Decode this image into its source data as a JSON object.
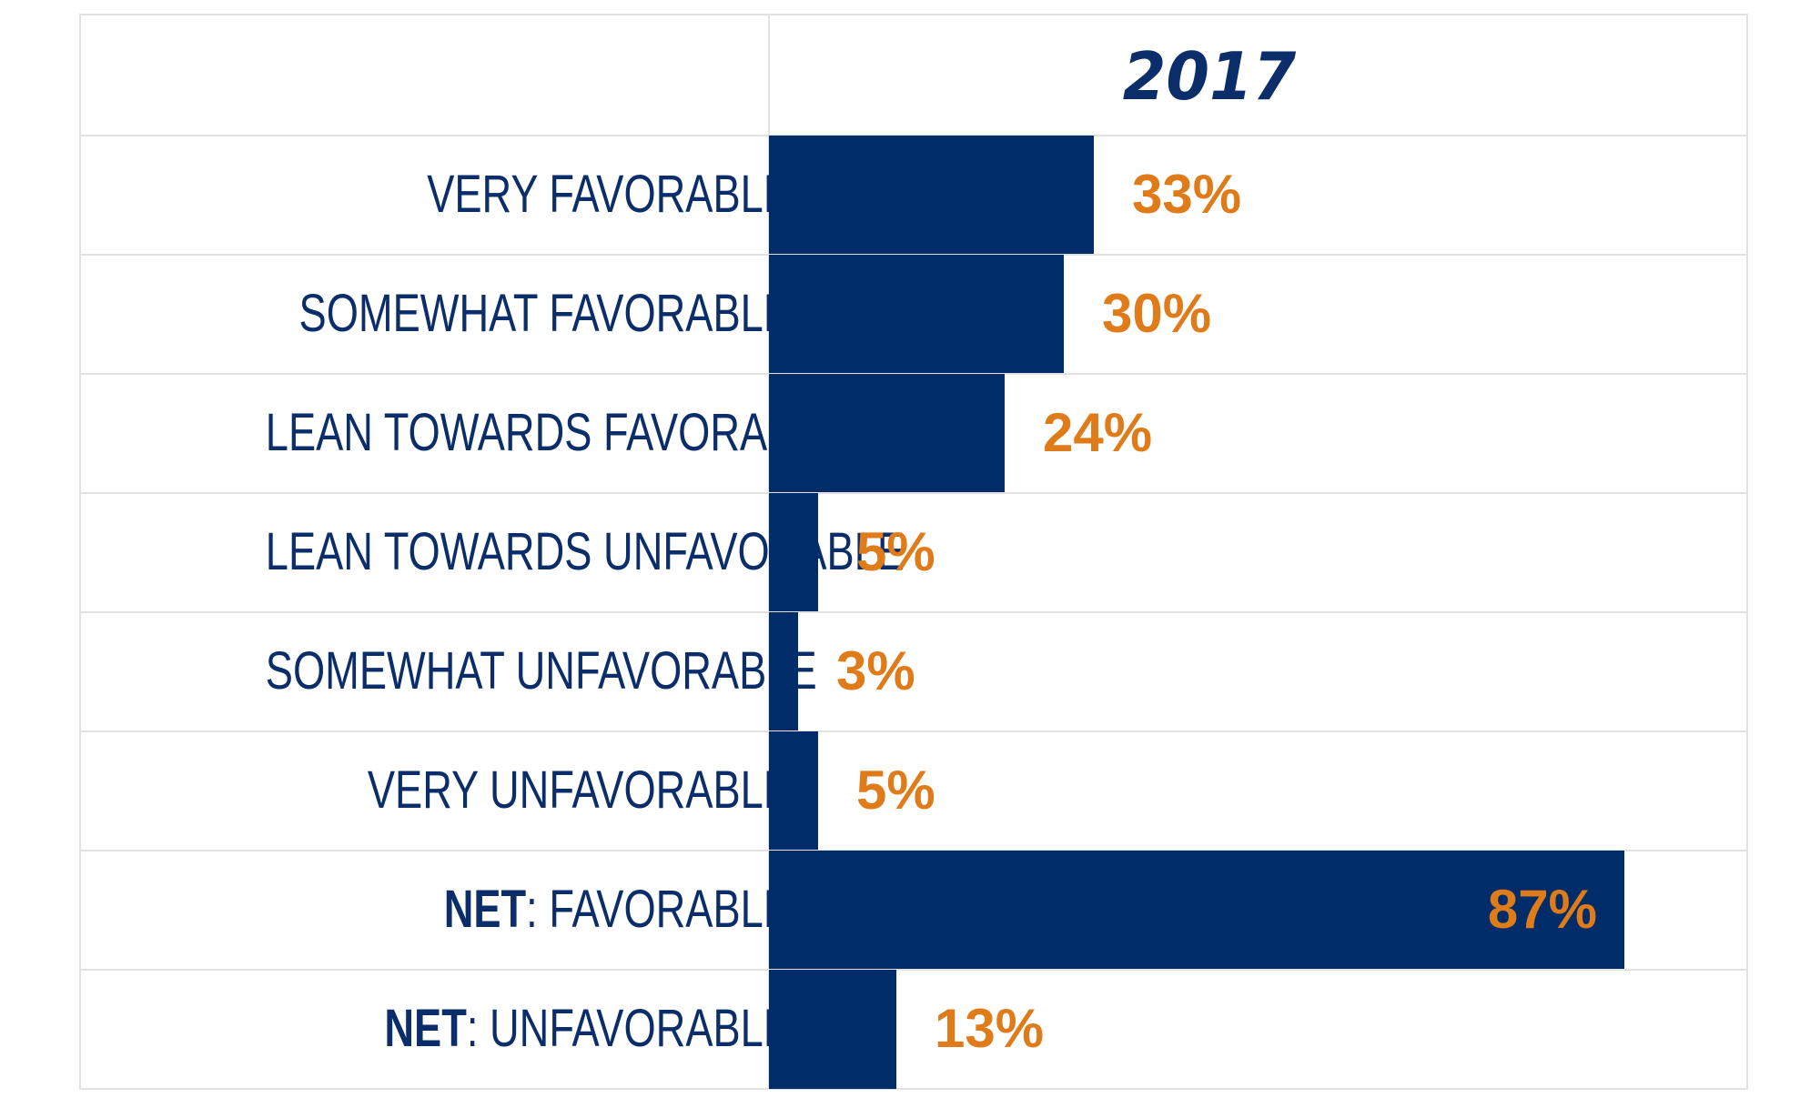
{
  "chart_data": {
    "type": "bar",
    "orientation": "horizontal",
    "title": "2017",
    "categories": [
      {
        "prefix": "",
        "label": "VERY FAVORABLE"
      },
      {
        "prefix": "",
        "label": "SOMEWHAT FAVORABLE"
      },
      {
        "prefix": "",
        "label": "LEAN TOWARDS FAVORABLE"
      },
      {
        "prefix": "",
        "label": "LEAN TOWARDS UNFAVORABLE"
      },
      {
        "prefix": "",
        "label": "SOMEWHAT UNFAVORABLE"
      },
      {
        "prefix": "",
        "label": "VERY UNFAVORABLE"
      },
      {
        "prefix": "NET",
        "label": ": FAVORABLE"
      },
      {
        "prefix": "NET",
        "label": ": UNFAVORABLE"
      }
    ],
    "values": [
      33,
      30,
      24,
      5,
      3,
      5,
      87,
      13
    ],
    "value_labels": [
      "33%",
      "30%",
      "24%",
      "5%",
      "3%",
      "5%",
      "87%",
      "13%"
    ],
    "xlim": [
      0,
      100
    ],
    "colors": {
      "bar": "#002d6a",
      "value_label": "#e07b1a",
      "category_label": "#0b2d69"
    }
  }
}
